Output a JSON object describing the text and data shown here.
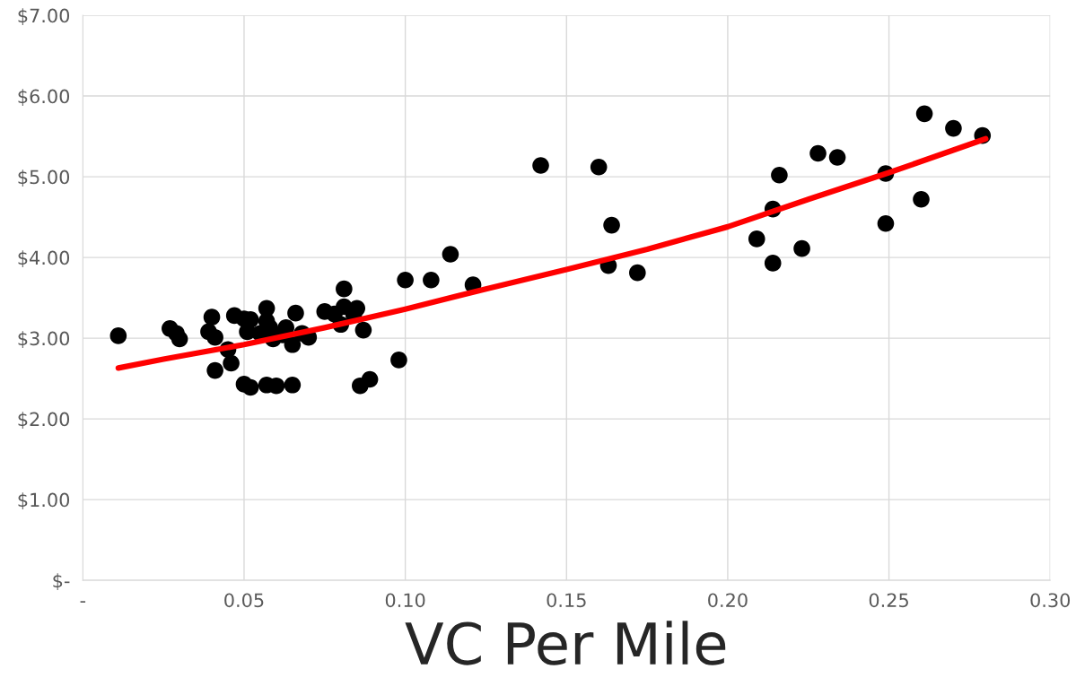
{
  "chart_data": {
    "type": "scatter",
    "xlabel": "VC Per Mile",
    "xlim": [
      0,
      0.3
    ],
    "xticks": [
      {
        "value": 0,
        "label": "-"
      },
      {
        "value": 0.05,
        "label": "0.05"
      },
      {
        "value": 0.1,
        "label": "0.10"
      },
      {
        "value": 0.15,
        "label": "0.15"
      },
      {
        "value": 0.2,
        "label": "0.20"
      },
      {
        "value": 0.25,
        "label": "0.25"
      },
      {
        "value": 0.3,
        "label": "0.30"
      }
    ],
    "ylim": [
      0,
      7
    ],
    "yticks": [
      {
        "value": 0,
        "label": "$-"
      },
      {
        "value": 1,
        "label": "$1.00"
      },
      {
        "value": 2,
        "label": "$2.00"
      },
      {
        "value": 3,
        "label": "$3.00"
      },
      {
        "value": 4,
        "label": "$4.00"
      },
      {
        "value": 5,
        "label": "$5.00"
      },
      {
        "value": 6,
        "label": "$6.00"
      },
      {
        "value": 7,
        "label": "$7.00"
      }
    ],
    "grid": true,
    "marker": "circle",
    "series": [
      {
        "color": "#000000",
        "x": [
          0.011,
          0.027,
          0.029,
          0.03,
          0.04,
          0.039,
          0.041,
          0.041,
          0.045,
          0.046,
          0.047,
          0.05,
          0.052,
          0.051,
          0.05,
          0.052,
          0.057,
          0.057,
          0.055,
          0.058,
          0.059,
          0.057,
          0.06,
          0.065,
          0.062,
          0.066,
          0.065,
          0.063,
          0.07,
          0.068,
          0.075,
          0.078,
          0.08,
          0.081,
          0.081,
          0.084,
          0.085,
          0.086,
          0.087,
          0.089,
          0.098,
          0.1,
          0.108,
          0.114,
          0.121,
          0.142,
          0.16,
          0.164,
          0.163,
          0.172,
          0.209,
          0.214,
          0.214,
          0.216,
          0.223,
          0.228,
          0.234,
          0.249,
          0.249,
          0.26,
          0.261,
          0.27,
          0.279
        ],
        "values": [
          3.03,
          3.12,
          3.06,
          2.99,
          3.26,
          3.08,
          3.01,
          2.6,
          2.86,
          2.69,
          3.28,
          3.24,
          3.23,
          3.08,
          2.43,
          2.39,
          3.37,
          3.21,
          3.06,
          3.13,
          2.99,
          2.42,
          2.41,
          2.42,
          3.04,
          3.31,
          2.92,
          3.13,
          3.01,
          3.06,
          3.33,
          3.3,
          3.17,
          3.61,
          3.39,
          3.29,
          3.37,
          2.41,
          3.1,
          2.49,
          2.73,
          3.72,
          3.72,
          4.04,
          3.66,
          5.14,
          5.12,
          4.4,
          3.9,
          3.81,
          4.23,
          4.6,
          3.93,
          5.02,
          4.11,
          5.29,
          5.24,
          5.04,
          4.42,
          4.72,
          5.78,
          5.6,
          5.51
        ]
      },
      {
        "type": "line",
        "color": "#ff0000",
        "marker": "none",
        "x": [
          0.011,
          0.025,
          0.05,
          0.075,
          0.1,
          0.125,
          0.15,
          0.175,
          0.2,
          0.225,
          0.25,
          0.28
        ],
        "values": [
          2.63,
          2.74,
          2.92,
          3.13,
          3.36,
          3.61,
          3.85,
          4.1,
          4.38,
          4.72,
          5.05,
          5.47
        ]
      }
    ]
  }
}
